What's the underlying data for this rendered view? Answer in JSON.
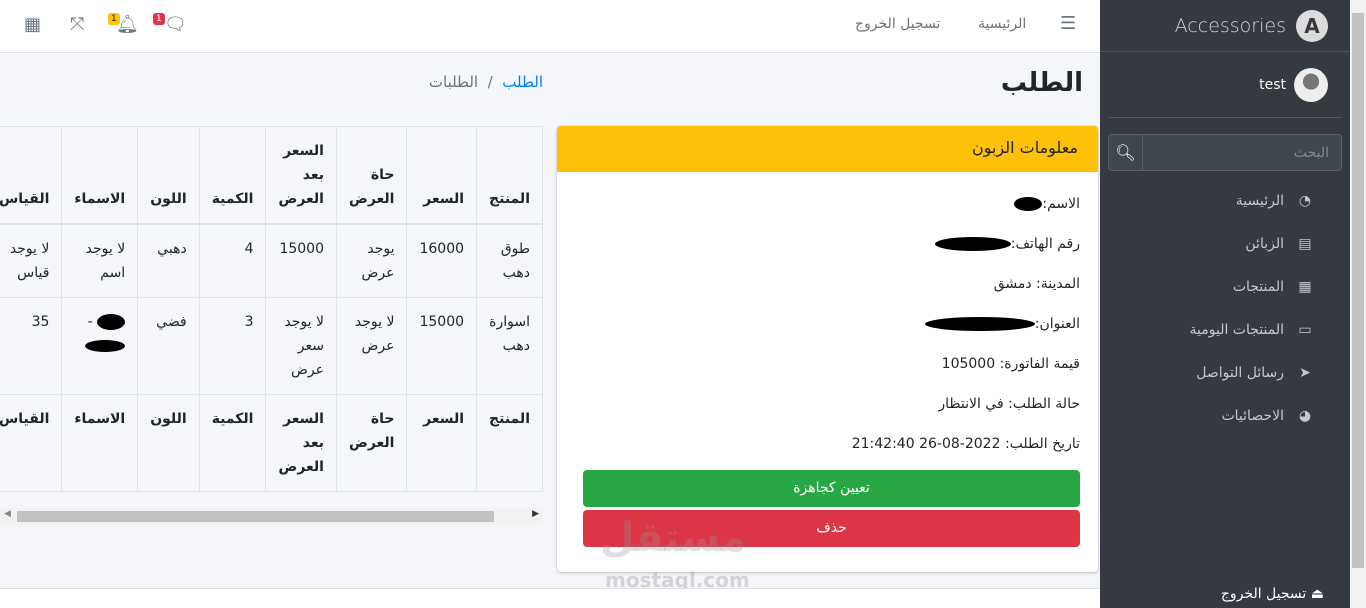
{
  "header": {
    "nav": [
      {
        "label": "الرئيسية"
      },
      {
        "label": "تسجيل الخروج"
      }
    ],
    "notifications_count": "1",
    "messages_count": "1",
    "icons": [
      "apps-icon",
      "fullscreen-icon",
      "bell-icon",
      "comments-icon",
      "menu-icon"
    ]
  },
  "sidebar": {
    "brand": "Accessories",
    "user": "test",
    "search_placeholder": "البحث",
    "items": [
      {
        "label": "الرئيسية",
        "icon": "dashboard-icon"
      },
      {
        "label": "الزبائن",
        "icon": "id-card-icon"
      },
      {
        "label": "المنتجات",
        "icon": "grid-icon"
      },
      {
        "label": "المنتجات اليومية",
        "icon": "list-card-icon"
      },
      {
        "label": "رسائل التواصل",
        "icon": "paper-plane-icon"
      },
      {
        "label": "الاحصائيات",
        "icon": "pie-chart-icon"
      }
    ],
    "logout": "تسجيل الخروج"
  },
  "page": {
    "title": "الطلب",
    "breadcrumb": [
      "الطلب",
      "الطلبات"
    ]
  },
  "customer": {
    "header": "معلومات الزبون",
    "name_label": "الاسم:",
    "phone_label": "رقم الهاتف:",
    "city_label": "المدينة: دمشق",
    "address_label": "العنوان:",
    "invoice": "قيمة الفاتورة: 105000",
    "status": "حالة الطلب: في الانتظار",
    "date": "تاريخ الطلب: 2022-08-26 21:42:40",
    "assign_btn": "تعيين كجاهزة",
    "delete_btn": "حذف"
  },
  "table": {
    "columns": [
      "المنتج",
      "السعر",
      "حاة العرض",
      "السعر بعد العرض",
      "الكمية",
      "اللون",
      "الاسماء",
      "القياس"
    ],
    "rows": [
      [
        "طوق دهب",
        "16000",
        "يوجد عرض",
        "15000",
        "4",
        "دهبي",
        "لا يوجد اسم",
        "لا يوجد قياس"
      ],
      [
        "اسوارة دهب",
        "15000",
        "لا يوجد عرض",
        "لا يوجد سعر عرض",
        "3",
        "فضي",
        "",
        "35"
      ]
    ]
  },
  "colors": {
    "sidebar": "#343a40",
    "warning": "#ffc107",
    "success": "#28a745",
    "danger": "#dc3545",
    "link": "#007bff"
  },
  "watermark": "مستقل mostaql.com"
}
